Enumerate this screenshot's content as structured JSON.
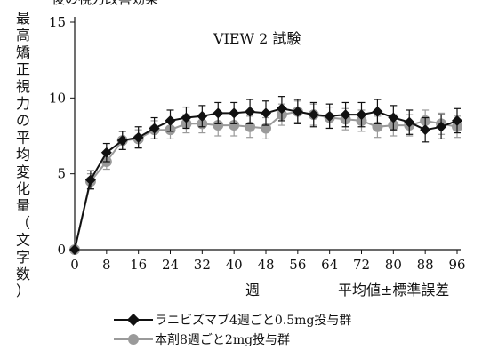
{
  "chart_data": {
    "type": "line",
    "title": "",
    "top_clip": "後の視力改善効果",
    "annotation": "VIEW 2 試験",
    "ylabel": "最高矯正視力の平均変化量（文字数）",
    "xlabel": "週",
    "error_note": "平均値±標準誤差",
    "xlim": [
      0,
      96
    ],
    "ylim": [
      0,
      15
    ],
    "x_ticks": [
      0,
      8,
      16,
      24,
      32,
      40,
      48,
      56,
      64,
      72,
      80,
      88,
      96
    ],
    "y_ticks": [
      0,
      5,
      10,
      15
    ],
    "x": [
      0,
      4,
      8,
      12,
      16,
      20,
      24,
      28,
      32,
      36,
      40,
      44,
      48,
      52,
      56,
      60,
      64,
      68,
      72,
      76,
      80,
      84,
      88,
      92,
      96
    ],
    "series": [
      {
        "name": "ラニビズマブ4週ごと0.5mg投与群",
        "color": "#111111",
        "marker": "diamond",
        "values": [
          0,
          4.6,
          6.4,
          7.2,
          7.4,
          8.0,
          8.5,
          8.7,
          8.8,
          9.0,
          9.0,
          9.1,
          9.0,
          9.3,
          9.1,
          8.9,
          8.8,
          8.9,
          8.9,
          9.1,
          8.7,
          8.4,
          7.9,
          8.1,
          8.5
        ],
        "errors": [
          0,
          0.6,
          0.6,
          0.6,
          0.7,
          0.7,
          0.7,
          0.7,
          0.7,
          0.7,
          0.7,
          0.8,
          0.8,
          0.8,
          0.8,
          0.8,
          0.8,
          0.8,
          0.8,
          0.8,
          0.8,
          0.8,
          0.8,
          0.8,
          0.8
        ]
      },
      {
        "name": "本剤8週ごと2mg投与群",
        "color": "#9a9a9a",
        "marker": "circle",
        "values": [
          0,
          4.5,
          5.8,
          7.2,
          7.3,
          7.9,
          7.9,
          8.3,
          8.3,
          8.2,
          8.2,
          8.1,
          8.0,
          8.9,
          9.1,
          8.9,
          8.7,
          8.6,
          8.5,
          8.1,
          8.2,
          8.2,
          8.5,
          8.3,
          8.1
        ],
        "errors": [
          0,
          0.5,
          0.5,
          0.6,
          0.6,
          0.6,
          0.6,
          0.6,
          0.6,
          0.7,
          0.7,
          0.7,
          0.7,
          0.7,
          0.7,
          0.7,
          0.7,
          0.7,
          0.7,
          0.7,
          0.7,
          0.7,
          0.7,
          0.7,
          0.7
        ]
      }
    ]
  }
}
